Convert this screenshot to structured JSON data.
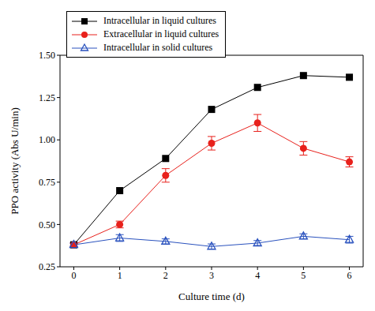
{
  "chart_data": {
    "type": "line",
    "x_label": "Culture time (d)",
    "y_label": "PPO activity (Abs U/min)",
    "x": [
      0,
      1,
      2,
      3,
      4,
      5,
      6
    ],
    "xlim": [
      -0.3,
      6.3
    ],
    "xticks": [
      0,
      1,
      2,
      3,
      4,
      5,
      6
    ],
    "ylim": [
      0.25,
      1.5
    ],
    "yticks": [
      0.25,
      {
        "value": 0.5,
        "label": "0.50"
      },
      0.75,
      {
        "value": 1,
        "label": "1.00"
      },
      1.25,
      {
        "value": 1.5,
        "label": "1.50"
      }
    ],
    "grid": false,
    "legend": "upper left",
    "series": [
      {
        "name": "Intracellular in liquid cultures",
        "color": "#000000",
        "marker": "square",
        "values": [
          0.38,
          0.7,
          0.89,
          1.18,
          1.31,
          1.38,
          1.37
        ]
      },
      {
        "name": "Extracellular in liquid cultures",
        "color": "#e8211c",
        "marker": "circle",
        "values": [
          0.38,
          0.5,
          0.79,
          0.98,
          1.1,
          0.95,
          0.87
        ],
        "errors": [
          0.01,
          0.02,
          0.04,
          0.04,
          0.05,
          0.04,
          0.03
        ]
      },
      {
        "name": "Intracellular in solid cultures",
        "color": "#2a52be",
        "marker": "triangle",
        "values": [
          0.38,
          0.42,
          0.4,
          0.37,
          0.39,
          0.43,
          0.41
        ],
        "errors": [
          0.01,
          0.02,
          0.015,
          0.015,
          0.015,
          0.015,
          0.02
        ]
      }
    ]
  }
}
